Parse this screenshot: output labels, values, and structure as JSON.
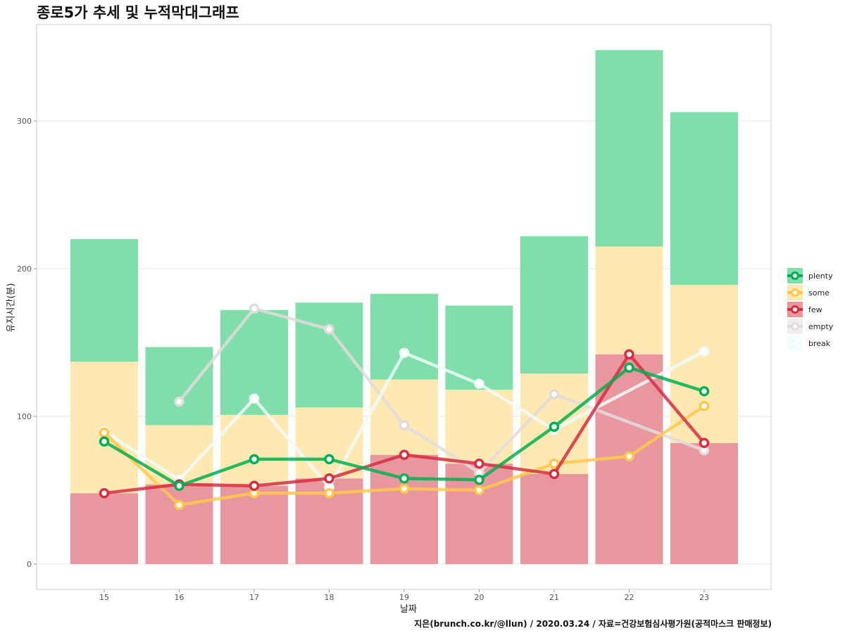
{
  "title": "종로5가 추세 및 누적막대그래프",
  "caption": "지은(brunch.co.kr/@llun) / 2020.03.24 / 자료=건강보험심사평가원(공적마스크 판매정보)",
  "colors": {
    "plenty": "#00b050",
    "some": "#ffc84a",
    "few": "#d62d3f",
    "empty": "#e0dcdc",
    "break": "#effcfc",
    "plenty_bar": "#80deaa",
    "some_bar": "#fee9b2",
    "few_bar": "#e9979f"
  },
  "legend": {
    "items": [
      {
        "key": "plenty",
        "label": "plenty"
      },
      {
        "key": "some",
        "label": "some"
      },
      {
        "key": "few",
        "label": "few"
      },
      {
        "key": "empty",
        "label": "empty"
      },
      {
        "key": "break",
        "label": "break"
      }
    ]
  },
  "chart_data": {
    "type": "bar",
    "subtype": "stacked bar with line overlay",
    "title": "종로5가 추세 및 누적막대그래프",
    "xlabel": "날짜",
    "ylabel": "유지시간(분)",
    "categories": [
      "15",
      "16",
      "17",
      "18",
      "19",
      "20",
      "21",
      "22",
      "23"
    ],
    "ylim": [
      -17,
      365
    ],
    "yticks": [
      0,
      100,
      200,
      300
    ],
    "grid": true,
    "legend_position": "right",
    "stacked_bars": [
      {
        "name": "few",
        "values": [
          48,
          54,
          53,
          58,
          74,
          68,
          61,
          142,
          82
        ]
      },
      {
        "name": "some",
        "values": [
          89,
          40,
          48,
          48,
          51,
          50,
          68,
          73,
          107
        ]
      },
      {
        "name": "plenty",
        "values": [
          83,
          53,
          71,
          71,
          58,
          57,
          93,
          133,
          117
        ]
      }
    ],
    "series": [
      {
        "name": "plenty",
        "values": [
          83,
          53,
          71,
          71,
          58,
          57,
          93,
          133,
          117
        ]
      },
      {
        "name": "some",
        "values": [
          89,
          40,
          48,
          48,
          51,
          50,
          68,
          73,
          107
        ]
      },
      {
        "name": "few",
        "values": [
          48,
          54,
          53,
          58,
          74,
          68,
          61,
          142,
          82
        ]
      },
      {
        "name": "empty",
        "values": [
          null,
          110,
          173,
          159,
          94,
          62,
          115,
          null,
          77
        ]
      },
      {
        "name": "break",
        "values": [
          90,
          57,
          112,
          52,
          143,
          122,
          91,
          null,
          144
        ]
      }
    ]
  }
}
